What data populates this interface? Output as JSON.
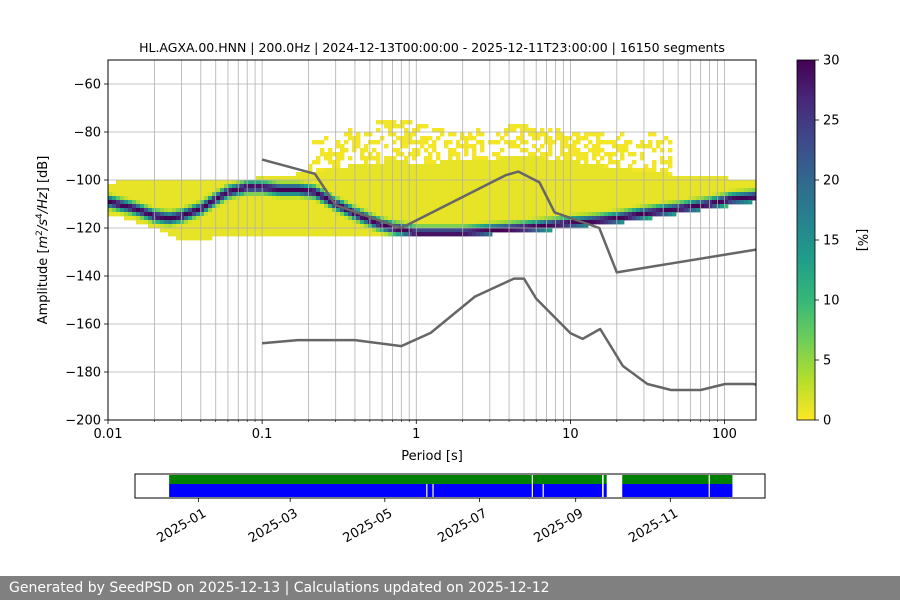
{
  "chart_data": [
    {
      "type": "heatmap",
      "title": "HL.AGXA.00.HNN | 200.0Hz | 2024-12-13T00:00:00 - 2025-12-11T23:00:00 | 16150 segments",
      "xlabel": "Period [s]",
      "ylabel_parts": {
        "prefix": "Amplitude [",
        "m": "m",
        "e2": "2",
        "s": "/s",
        "e4": "4",
        "hz": "/Hz",
        "suffix": "] [dB]"
      },
      "x_scale": "log",
      "xlim": [
        0.01,
        160
      ],
      "ylim": [
        -200,
        -50
      ],
      "x_tick_labels": [
        "0.01",
        "0.1",
        "1",
        "10",
        "100"
      ],
      "x_tick_values": [
        0.01,
        0.1,
        1,
        10,
        100
      ],
      "y_ticks": [
        -200,
        -180,
        -160,
        -140,
        -120,
        -100,
        -80,
        -60
      ],
      "y_tick_labels": [
        "−200",
        "−180",
        "−160",
        "−140",
        "−120",
        "−100",
        "−80",
        "−60"
      ],
      "grid": true,
      "colorbar": {
        "label": "[%]",
        "range": [
          0,
          30
        ],
        "ticks": [
          0,
          5,
          10,
          15,
          20,
          25,
          30
        ],
        "tick_labels": [
          "0",
          "5",
          "10",
          "15",
          "20",
          "25",
          "30"
        ],
        "colormap": "viridis_r",
        "stops": [
          "#fde725",
          "#b5de2b",
          "#6ece58",
          "#35b779",
          "#1f9e89",
          "#26828e",
          "#31688e",
          "#3e4989",
          "#482878",
          "#440154"
        ]
      },
      "mode_curve": {
        "x": [
          0.01,
          0.015,
          0.02,
          0.025,
          0.03,
          0.04,
          0.05,
          0.06,
          0.08,
          0.1,
          0.13,
          0.17,
          0.22,
          0.3,
          0.4,
          0.55,
          0.7,
          0.85,
          1.0,
          1.5,
          2,
          3,
          5,
          7,
          10,
          15,
          20,
          30,
          50,
          80,
          110,
          160
        ],
        "y": [
          -109,
          -112,
          -115,
          -116,
          -115,
          -112,
          -108,
          -105,
          -103,
          -103,
          -104,
          -104,
          -105,
          -110,
          -114,
          -118,
          -120,
          -121,
          -122,
          -122,
          -122,
          -121,
          -120,
          -119,
          -118,
          -117,
          -116,
          -114,
          -112,
          -110,
          -108,
          -107
        ]
      },
      "psd_spread": {
        "x": [
          0.01,
          0.02,
          0.03,
          0.05,
          0.1,
          0.2,
          0.3,
          0.5,
          0.8,
          1,
          2,
          5,
          10,
          20,
          50,
          100,
          160
        ],
        "upper": [
          -101,
          -100,
          -100,
          -100,
          -99,
          -97,
          -95,
          -93,
          -92,
          -93,
          -92,
          -90,
          -92,
          -95,
          -98,
          -99,
          -100
        ],
        "lower": [
          -114,
          -120,
          -125,
          -124,
          -124,
          -124,
          -123,
          -124,
          -124,
          -124,
          -123,
          -122,
          -120,
          -118,
          -114,
          -111,
          -109
        ]
      },
      "sparse_upper": {
        "x": [
          0.2,
          0.3,
          0.5,
          0.8,
          1.2,
          2,
          3,
          5,
          8,
          12,
          20,
          30,
          45
        ],
        "y": [
          -85,
          -80,
          -76,
          -75,
          -77,
          -80,
          -78,
          -77,
          -79,
          -80,
          -80,
          -79,
          -83
        ]
      },
      "noise_model_high": {
        "x": [
          0.1,
          0.22,
          0.3,
          0.8,
          3.8,
          4.6,
          6.3,
          7.9,
          15.4,
          20,
          160
        ],
        "y": [
          -91.5,
          -97.4,
          -110.5,
          -120,
          -98,
          -96.5,
          -101,
          -113.5,
          -120,
          -138.5,
          -129
        ]
      },
      "noise_model_low": {
        "x": [
          0.1,
          0.17,
          0.4,
          0.8,
          1.24,
          2.4,
          4.3,
          5,
          6,
          10,
          12,
          15.6,
          21.9,
          31.6,
          45,
          70,
          101,
          154,
          160
        ],
        "y": [
          -168,
          -166.7,
          -166.7,
          -169.2,
          -163.7,
          -148.6,
          -141.1,
          -141.1,
          -149.4,
          -163.8,
          -166.2,
          -162.1,
          -177.5,
          -185,
          -187.5,
          -187.5,
          -185,
          -185,
          -185.3
        ]
      }
    },
    {
      "type": "timeline",
      "x_tick_labels": [
        "2025-01",
        "2025-03",
        "2025-05",
        "2025-07",
        "2025-09",
        "2025-11"
      ],
      "x_tick_dates": [
        "2025-01-01",
        "2025-03-01",
        "2025-05-01",
        "2025-07-01",
        "2025-09-01",
        "2025-11-01"
      ],
      "xlim": [
        "2024-11-21",
        "2026-01-01"
      ],
      "rows": [
        {
          "color": "#008000",
          "segments": [
            [
              "2024-12-13",
              "2025-09-18"
            ],
            [
              "2025-09-19",
              "2025-09-21"
            ],
            [
              "2025-10-01",
              "2025-12-11"
            ]
          ],
          "gaps": [
            "2025-08-04",
            "2025-11-26"
          ]
        },
        {
          "color": "#0000ff",
          "segments": [
            [
              "2024-12-13",
              "2025-09-18"
            ],
            [
              "2025-09-19",
              "2025-09-21"
            ],
            [
              "2025-10-01",
              "2025-12-11"
            ]
          ],
          "gaps": [
            "2025-05-28",
            "2025-06-01",
            "2025-08-04",
            "2025-08-11",
            "2025-11-26"
          ]
        }
      ]
    }
  ],
  "footer": {
    "text": "Generated by SeedPSD on 2025-12-13 | Calculations updated on 2025-12-12"
  }
}
